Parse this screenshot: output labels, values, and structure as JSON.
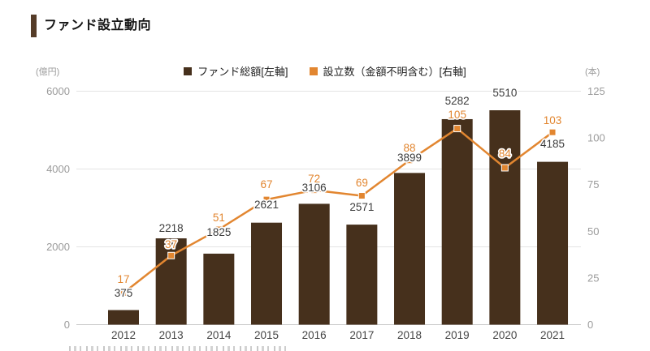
{
  "header": {
    "title": "ファンド設立動向"
  },
  "legend": {
    "items": [
      {
        "label": "ファンド総額[左軸]",
        "color": "#46301c",
        "marker": "square"
      },
      {
        "label": "設立数（金額不明含む）[右軸]",
        "color": "#e28630",
        "marker": "square"
      }
    ]
  },
  "axes": {
    "left": {
      "unit": "(億円)",
      "ticks": [
        0,
        2000,
        4000,
        6000
      ],
      "max": 6000
    },
    "right": {
      "unit": "(本)",
      "ticks": [
        0,
        25,
        50,
        75,
        100,
        125
      ],
      "max": 125
    }
  },
  "chart_data": {
    "type": "combo",
    "categories": [
      "2012",
      "2013",
      "2014",
      "2015",
      "2016",
      "2017",
      "2018",
      "2019",
      "2020",
      "2021"
    ],
    "series": [
      {
        "name": "ファンド総額[左軸]",
        "type": "bar",
        "axis": "left",
        "color": "#46301c",
        "values": [
          375,
          2218,
          1825,
          2621,
          3106,
          2571,
          3899,
          5282,
          5510,
          4185
        ]
      },
      {
        "name": "設立数（金額不明含む）[右軸]",
        "type": "line",
        "axis": "right",
        "color": "#e28630",
        "values": [
          17,
          37,
          51,
          67,
          72,
          69,
          88,
          105,
          84,
          103
        ]
      }
    ],
    "title": "ファンド設立動向",
    "xlabel": "",
    "ylabel_left": "(億円)",
    "ylabel_right": "(本)",
    "ylim_left": [
      0,
      6000
    ],
    "ylim_right": [
      0,
      125
    ],
    "grid": true,
    "legend_position": "top",
    "data_labels": true
  },
  "colors": {
    "bar": "#46301c",
    "line": "#e28630",
    "bar_label": "#3c3c3c",
    "line_label": "#e28630",
    "tick_label": "#9b9b9b",
    "category_label": "#464646",
    "gridline": "#e4e4e4",
    "axis_line": "#c9c9c9",
    "accent": "#553c28"
  }
}
